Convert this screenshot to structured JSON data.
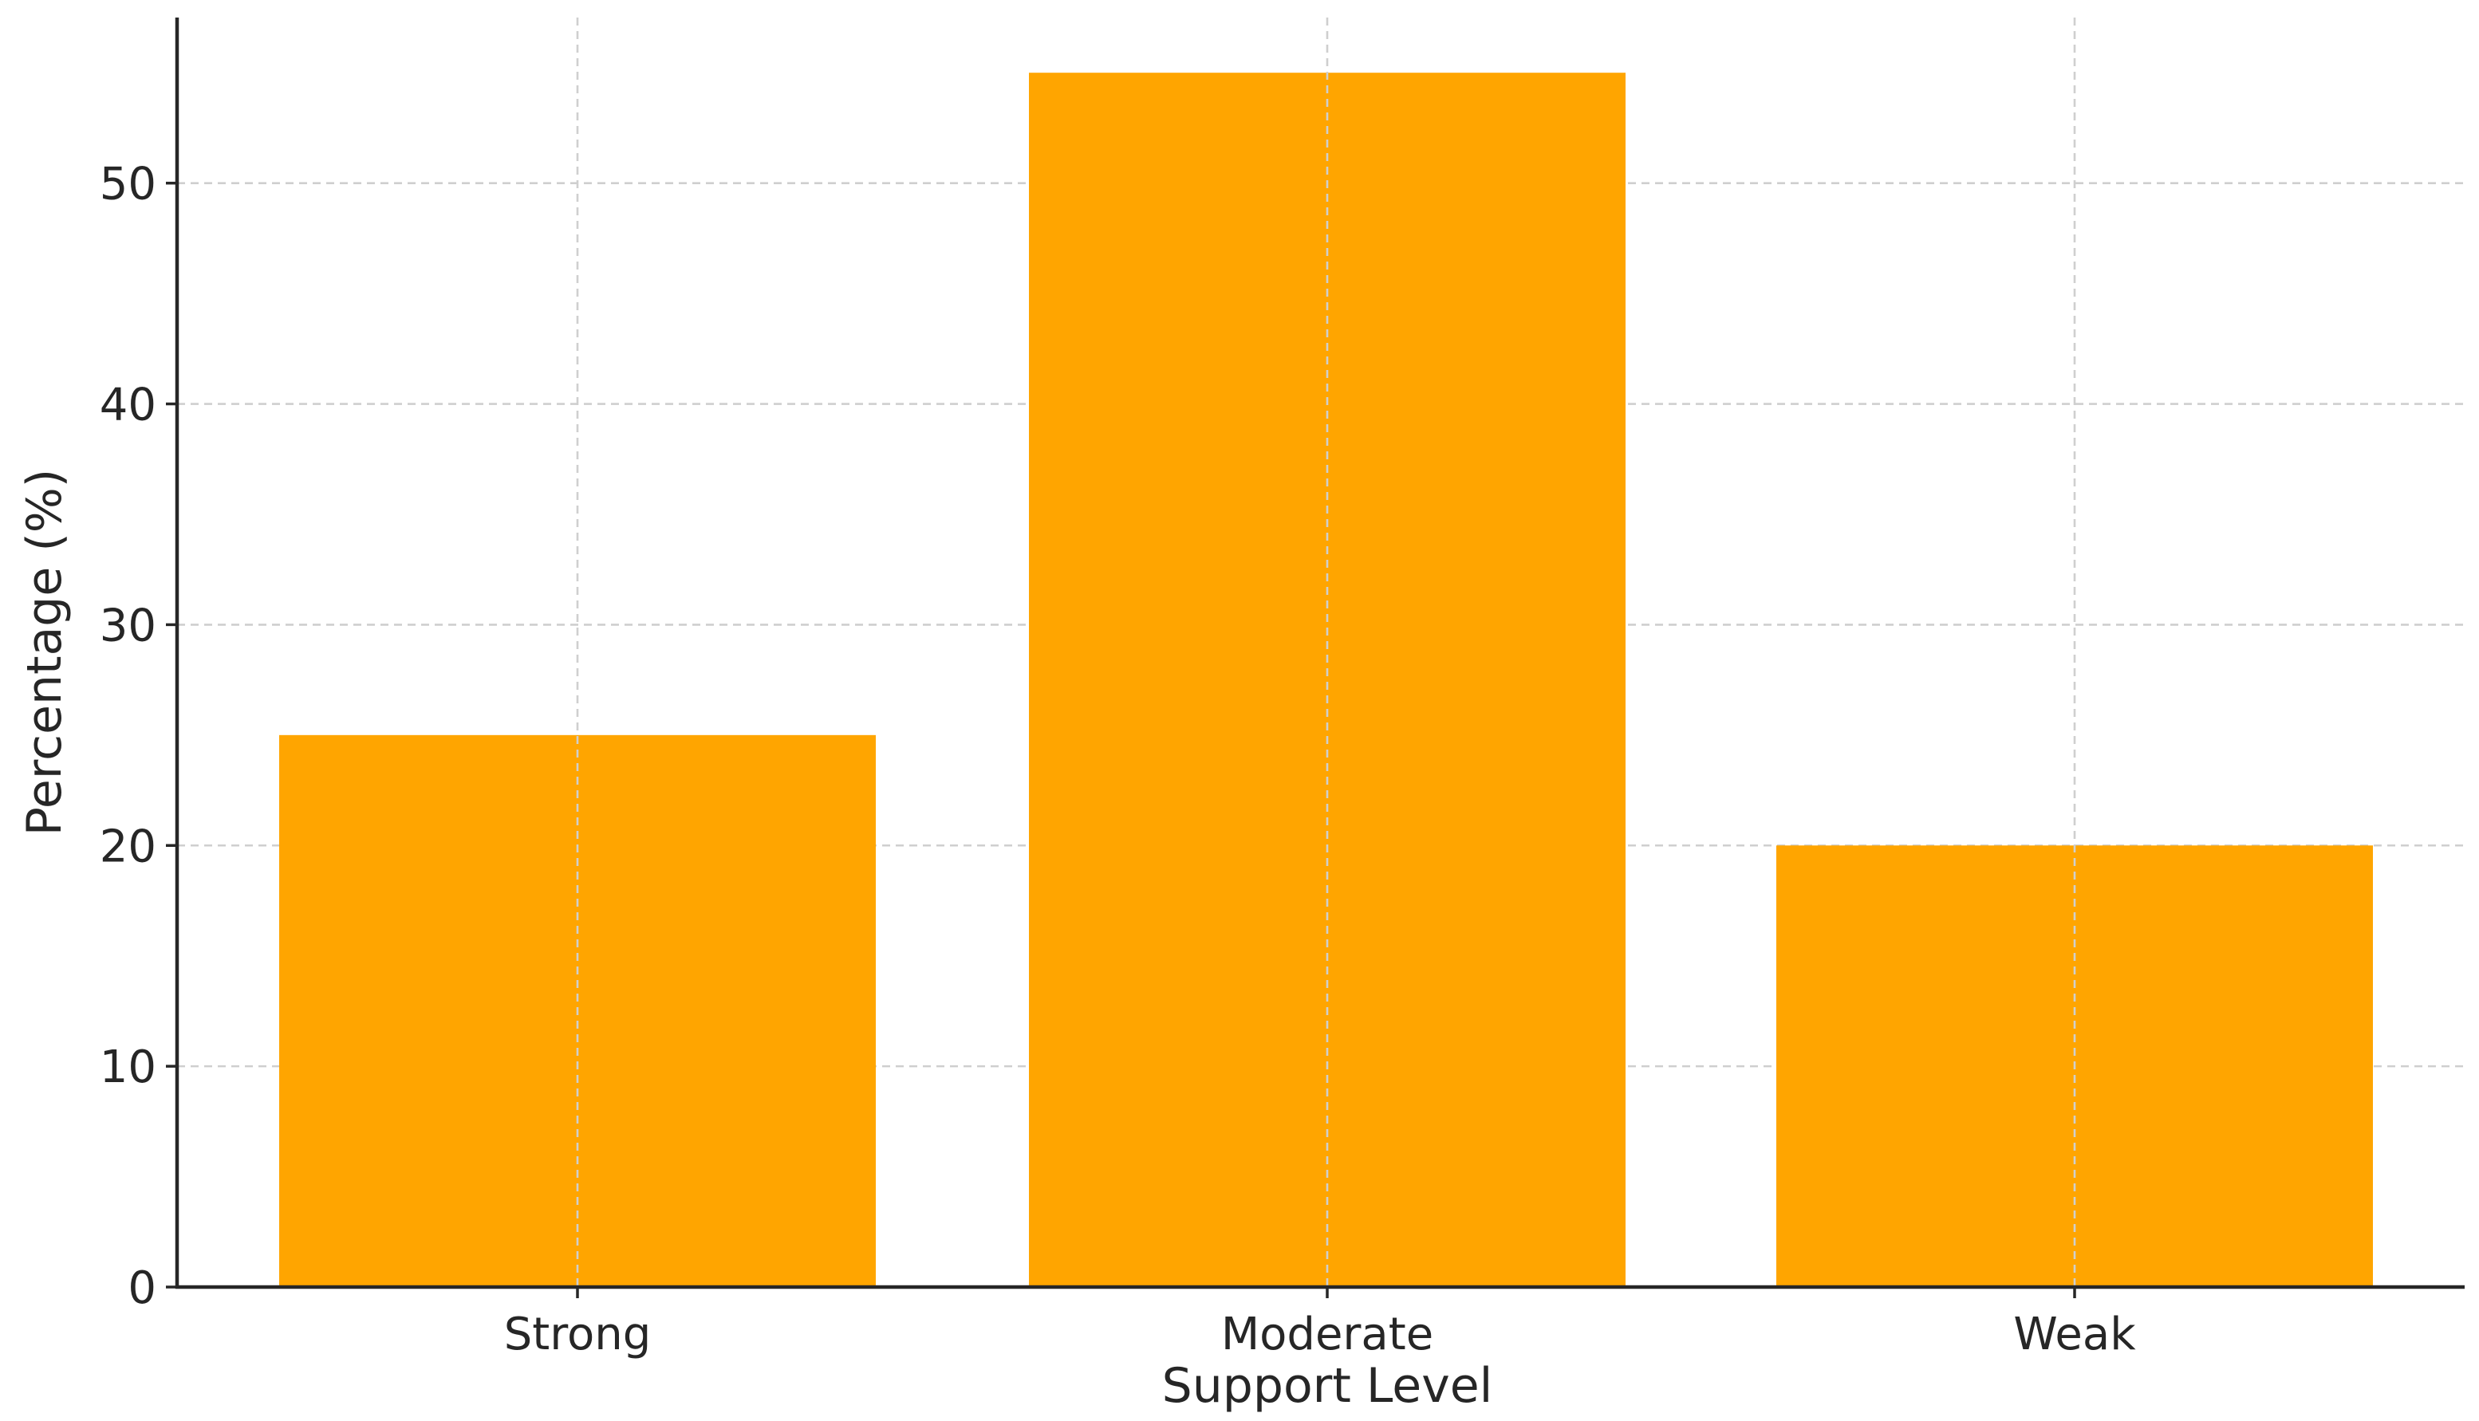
{
  "chart_data": {
    "type": "bar",
    "title": "",
    "xlabel": "Support Level",
    "ylabel": "Percentage (%)",
    "categories": [
      "Strong",
      "Moderate",
      "Weak"
    ],
    "values": [
      25,
      55,
      20
    ],
    "ylim": [
      0,
      57.5
    ],
    "yticks": [
      0,
      10,
      20,
      30,
      40,
      50
    ],
    "grid": true,
    "bar_color": "#FFA500",
    "grid_color": "#CFCFCF",
    "axis_color": "#262626"
  }
}
